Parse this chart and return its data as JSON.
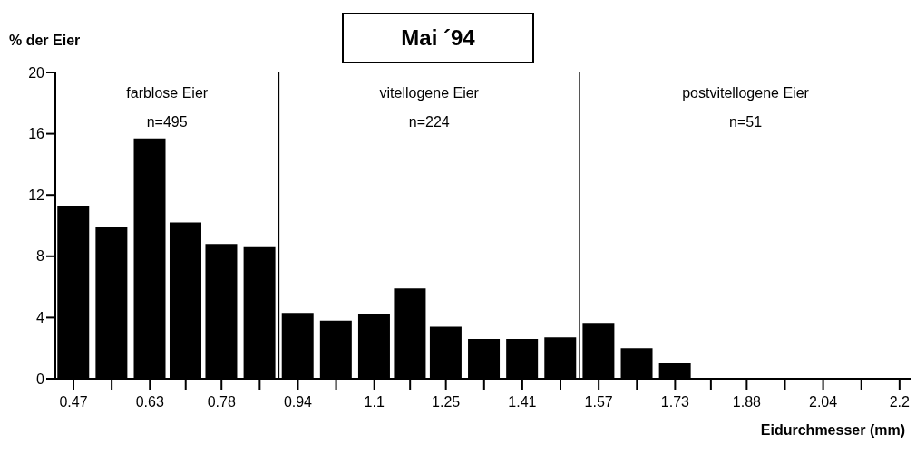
{
  "chart_data": {
    "type": "bar",
    "title": "Mai ´94",
    "ylabel": "% der Eier",
    "xlabel": "Eidurchmesser (mm)",
    "x": [
      0.47,
      0.55,
      0.63,
      0.705,
      0.78,
      0.86,
      0.94,
      1.02,
      1.1,
      1.175,
      1.25,
      1.33,
      1.41,
      1.49,
      1.57,
      1.65,
      1.73
    ],
    "values": [
      11.3,
      9.9,
      15.7,
      10.2,
      8.8,
      8.6,
      4.3,
      3.8,
      4.2,
      5.9,
      3.4,
      2.6,
      2.6,
      2.7,
      3.6,
      2.0,
      1.0
    ],
    "color": "#000000",
    "xlim": [
      0.432,
      2.225
    ],
    "xticks": [
      0.47,
      {
        "value": 0.55,
        "label": null
      },
      0.63,
      {
        "value": 0.705,
        "label": null
      },
      0.78,
      {
        "value": 0.86,
        "label": null
      },
      0.94,
      {
        "value": 1.02,
        "label": null
      },
      1.1,
      {
        "value": 1.175,
        "label": null
      },
      1.25,
      {
        "value": 1.33,
        "label": null
      },
      1.41,
      {
        "value": 1.49,
        "label": null
      },
      1.57,
      {
        "value": 1.65,
        "label": null
      },
      1.73,
      {
        "value": 1.805,
        "label": null
      },
      1.88,
      {
        "value": 1.96,
        "label": null
      },
      2.04,
      {
        "value": 2.12,
        "label": null
      },
      2.2
    ],
    "ylim": [
      0,
      20
    ],
    "yticks": [
      0,
      4,
      8,
      12,
      16,
      20
    ],
    "ref_lines": [
      {
        "axis": "x",
        "value": 0.9,
        "color": "#000000"
      },
      {
        "axis": "x",
        "value": 1.53,
        "color": "#000000"
      }
    ],
    "annotations": [
      "farblose Eier\nn=495",
      "vitellogene Eier\nn=224",
      "postvitellogene Eier\nn=51"
    ]
  }
}
